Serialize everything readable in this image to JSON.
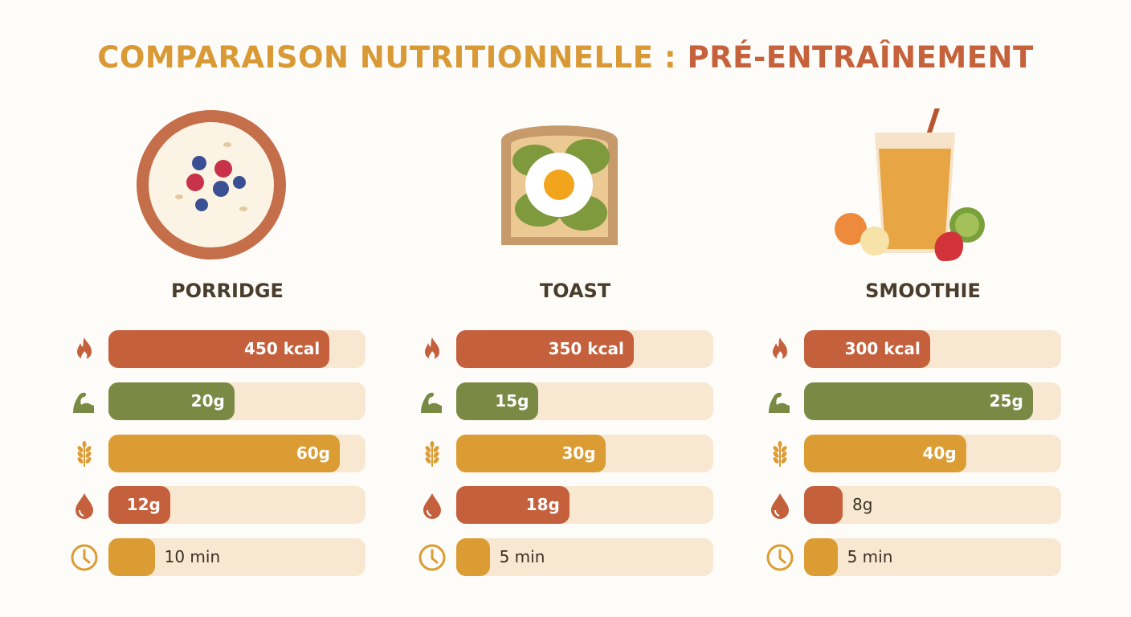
{
  "title": {
    "part1": "COMPARAISON NUTRITIONNELLE :",
    "part2": "PRÉ-ENTRAÎNEMENT"
  },
  "colors": {
    "calories": "#c5603c",
    "protein": "#7a8a44",
    "carbs": "#dc9c34",
    "fat": "#c5603c",
    "time": "#dc9c34",
    "track": "#f8e8d2"
  },
  "chart_data": {
    "type": "bar",
    "metrics": [
      {
        "key": "calories",
        "icon": "flame-icon"
      },
      {
        "key": "protein",
        "icon": "flexed-arm-icon"
      },
      {
        "key": "carbs",
        "icon": "wheat-icon"
      },
      {
        "key": "fat",
        "icon": "drop-icon"
      },
      {
        "key": "time",
        "icon": "clock-icon"
      }
    ],
    "foods": [
      {
        "name": "PORRIDGE",
        "illustration": "porridge-bowl",
        "bars": [
          {
            "label": "450 kcal",
            "fill_pct": 86
          },
          {
            "label": "20g",
            "fill_pct": 49
          },
          {
            "label": "60g",
            "fill_pct": 90
          },
          {
            "label": "12g",
            "fill_pct": 24
          },
          {
            "label": "10 min",
            "fill_pct": 18
          }
        ]
      },
      {
        "name": "TOAST",
        "illustration": "avocado-egg-toast",
        "bars": [
          {
            "label": "350 kcal",
            "fill_pct": 69
          },
          {
            "label": "15g",
            "fill_pct": 32
          },
          {
            "label": "30g",
            "fill_pct": 58
          },
          {
            "label": "18g",
            "fill_pct": 44
          },
          {
            "label": "5 min",
            "fill_pct": 13
          }
        ]
      },
      {
        "name": "SMOOTHIE",
        "illustration": "fruit-smoothie",
        "bars": [
          {
            "label": "300 kcal",
            "fill_pct": 49
          },
          {
            "label": "25g",
            "fill_pct": 89
          },
          {
            "label": "40g",
            "fill_pct": 63
          },
          {
            "label": "8g",
            "fill_pct": 15
          },
          {
            "label": "5 min",
            "fill_pct": 13
          }
        ]
      }
    ]
  }
}
